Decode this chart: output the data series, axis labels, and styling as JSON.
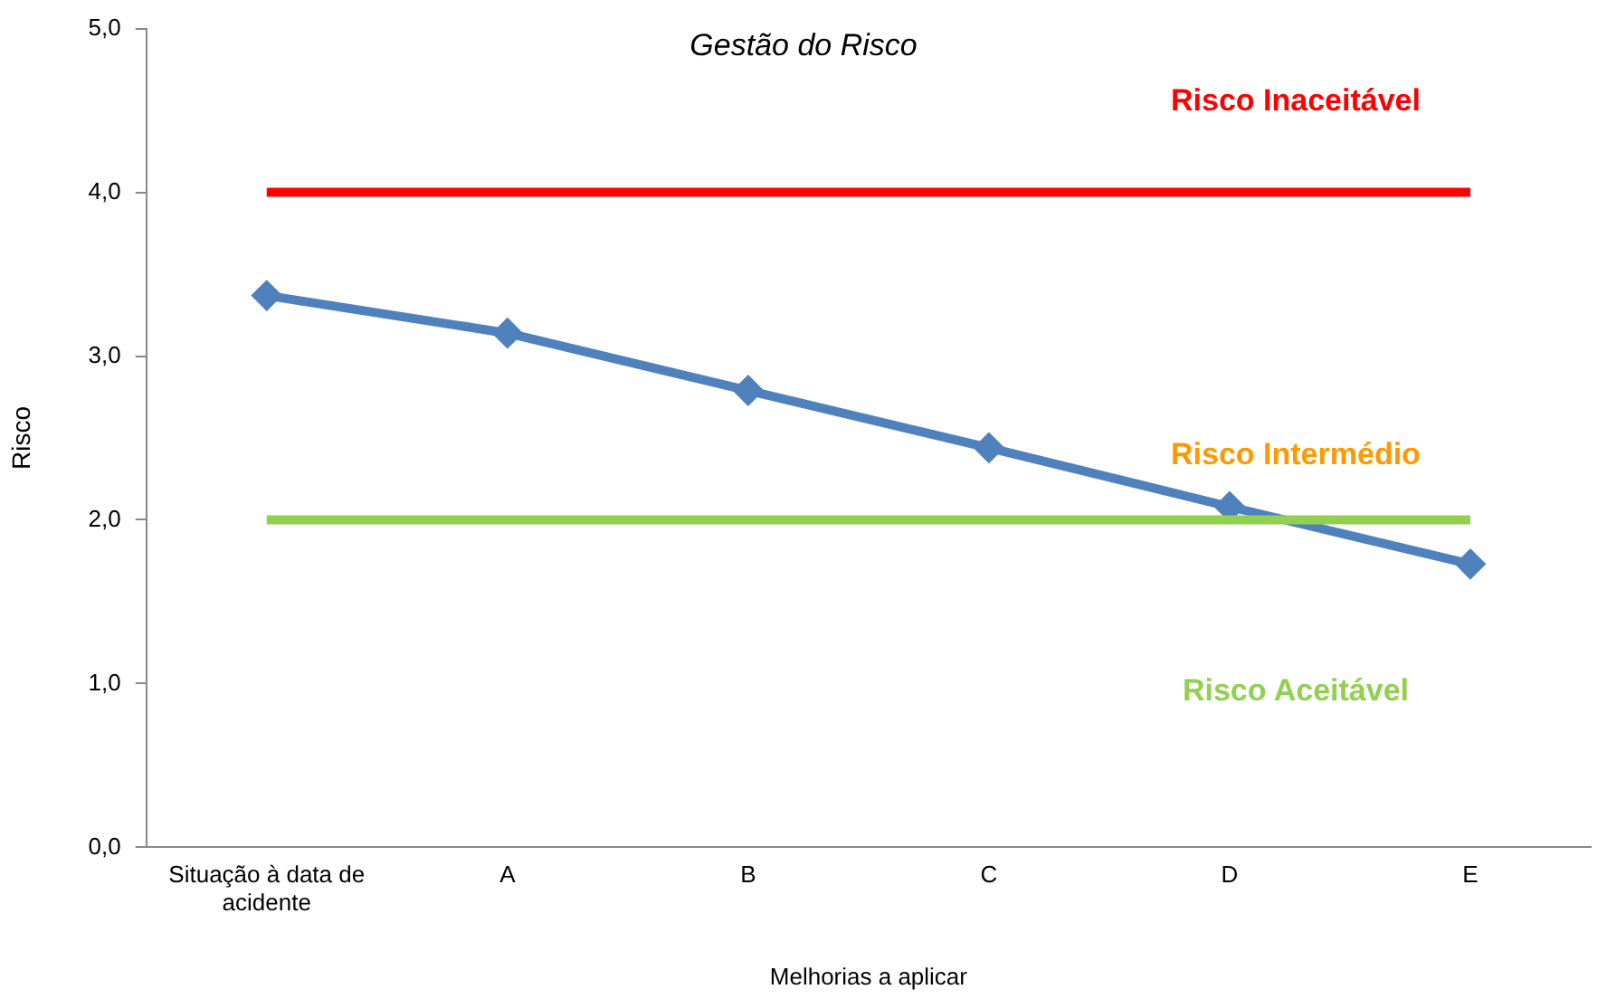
{
  "chart_data": {
    "type": "line",
    "title": "Gestão do Risco",
    "xlabel": "Melhorias a aplicar",
    "ylabel": "Risco",
    "categories": [
      "Situação à data de acidente",
      "A",
      "B",
      "C",
      "D",
      "E"
    ],
    "series": [
      {
        "color": "#4f81bd",
        "values": [
          3.37,
          3.14,
          2.79,
          2.44,
          2.08,
          1.73
        ]
      }
    ],
    "ylim": [
      0,
      5
    ],
    "yticks": [
      {
        "value": 0,
        "label": "0,0"
      },
      {
        "value": 1,
        "label": "1,0"
      },
      {
        "value": 2,
        "label": "2,0"
      },
      {
        "value": 3,
        "label": "3,0"
      },
      {
        "value": 4,
        "label": "4,0"
      },
      {
        "value": 5,
        "label": "5,0"
      }
    ],
    "ref_lines": [
      {
        "axis": "y",
        "value": 4,
        "label": "Risco Inaceitável",
        "color": "#ff0000"
      },
      {
        "axis": "y",
        "value": 2,
        "label": "Risco Aceitável",
        "color": "#92d050"
      }
    ],
    "annotations": [
      "Risco Intermédio"
    ],
    "marker": "diamond",
    "line_style": "solid",
    "grid": false,
    "legend": false
  }
}
